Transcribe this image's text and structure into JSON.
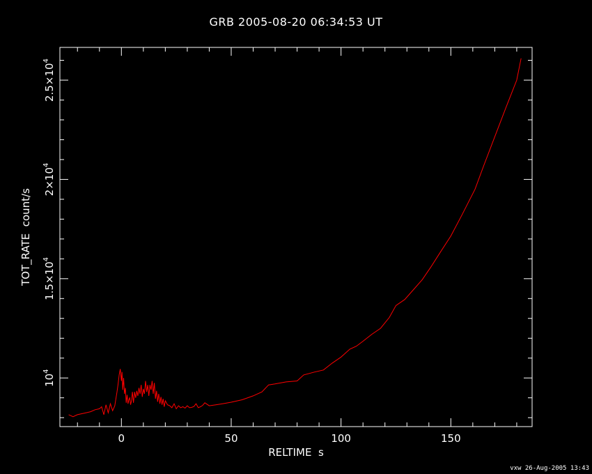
{
  "title": "GRB 2005-08-20 06:34:53 UT",
  "footer": "vxw 26-Aug-2005 13:43",
  "colors": {
    "background": "#000000",
    "axes": "#ffffff",
    "series": "#ff0000"
  },
  "chart_data": {
    "type": "line",
    "title": "GRB 2005-08-20 06:34:53 UT",
    "xlabel": "RELTIME  s",
    "ylabel": "TOT_RATE  count/s",
    "xlim": [
      -28,
      187
    ],
    "ylim": [
      7550,
      26650
    ],
    "grid": false,
    "x_ticks": [
      {
        "value": 0,
        "label": "0"
      },
      {
        "value": 50,
        "label": "50"
      },
      {
        "value": 100,
        "label": "100"
      },
      {
        "value": 150,
        "label": "150"
      }
    ],
    "y_ticks": [
      {
        "value": 10000,
        "mantissa": "",
        "exponent": "4"
      },
      {
        "value": 15000,
        "mantissa": "1.5",
        "exponent": "4"
      },
      {
        "value": 20000,
        "mantissa": "2",
        "exponent": "4"
      },
      {
        "value": 25000,
        "mantissa": "2.5",
        "exponent": "4"
      }
    ],
    "series": [
      {
        "x": [
          -24,
          -22,
          -20,
          -18,
          -16,
          -14,
          -12,
          -10,
          -9,
          -8,
          -7,
          -6,
          -5,
          -4,
          -3,
          -2,
          -1.5,
          -1,
          -0.5,
          0,
          0.3,
          0.6,
          1,
          1.4,
          1.8,
          2.2,
          2.6,
          3,
          3.4,
          3.8,
          4.2,
          4.6,
          5,
          5.5,
          6,
          6.5,
          7,
          7.5,
          8,
          8.5,
          9,
          9.5,
          10,
          10.5,
          11,
          11.5,
          12,
          12.5,
          13,
          13.5,
          14,
          14.5,
          15,
          15.5,
          16,
          16.5,
          17,
          17.5,
          18,
          18.5,
          19,
          19.5,
          20,
          21,
          22,
          23,
          24,
          25,
          26,
          27,
          28,
          29,
          30,
          31,
          32,
          33,
          34,
          35,
          36,
          37,
          38,
          40,
          43,
          46,
          50,
          55,
          60,
          64,
          67,
          70,
          75,
          80,
          83,
          88,
          92,
          96,
          100,
          104,
          107,
          110,
          114,
          118,
          122,
          125,
          129,
          133,
          137,
          141,
          145,
          150,
          155,
          161,
          165,
          170,
          175,
          180,
          182
        ],
        "y": [
          8150,
          8050,
          8150,
          8200,
          8250,
          8300,
          8400,
          8450,
          8550,
          8150,
          8650,
          8250,
          8700,
          8350,
          8600,
          9300,
          9700,
          10150,
          10450,
          9850,
          10300,
          9400,
          10000,
          9200,
          9500,
          8750,
          9150,
          8700,
          8900,
          9000,
          8650,
          8850,
          9300,
          8750,
          9300,
          9000,
          9350,
          9100,
          9500,
          9200,
          9650,
          9050,
          9450,
          9200,
          9850,
          9300,
          9650,
          9100,
          9650,
          9400,
          9850,
          9200,
          9750,
          8950,
          9350,
          8800,
          9200,
          8700,
          9050,
          8650,
          8950,
          8550,
          8850,
          8650,
          8600,
          8500,
          8700,
          8450,
          8600,
          8500,
          8550,
          8480,
          8600,
          8500,
          8520,
          8560,
          8700,
          8500,
          8550,
          8620,
          8750,
          8600,
          8650,
          8700,
          8780,
          8900,
          9100,
          9300,
          9650,
          9700,
          9800,
          9850,
          10150,
          10300,
          10400,
          10750,
          11050,
          11450,
          11600,
          11850,
          12200,
          12500,
          13050,
          13650,
          13950,
          14450,
          14950,
          15600,
          16300,
          17150,
          18200,
          19500,
          20700,
          22150,
          23600,
          25000,
          26100
        ]
      }
    ]
  }
}
